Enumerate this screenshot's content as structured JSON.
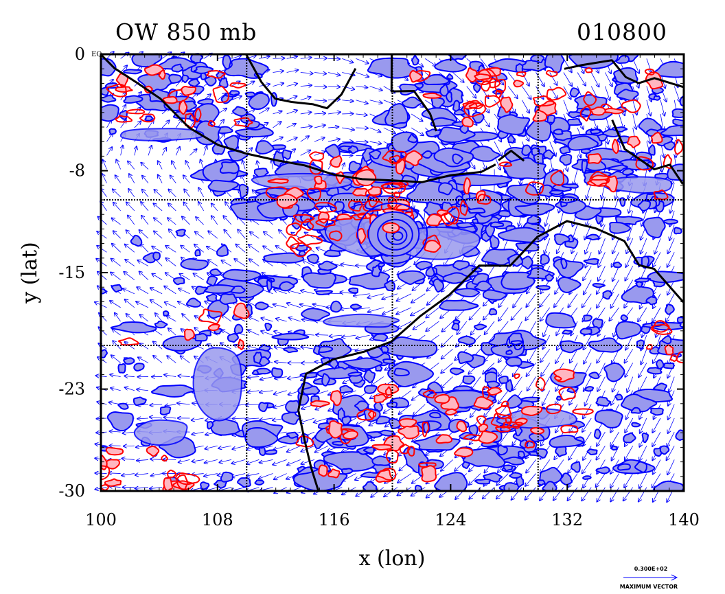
{
  "chart_data": {
    "type": "contour",
    "title_left": "OW 850 mb",
    "title_right": "010800",
    "xlabel": "x (lon)",
    "ylabel": "y (lat)",
    "xlim": [
      100,
      140
    ],
    "ylim": [
      -30,
      0
    ],
    "x_ticks": [
      {
        "value": 100,
        "label": "100"
      },
      {
        "value": 108,
        "label": "108"
      },
      {
        "value": 116,
        "label": "116"
      },
      {
        "value": 124,
        "label": "124"
      },
      {
        "value": 132,
        "label": "132"
      },
      {
        "value": 140,
        "label": "140"
      }
    ],
    "y_ticks": [
      {
        "value": 0,
        "label": "0"
      },
      {
        "value": -8,
        "label": "-8"
      },
      {
        "value": -15,
        "label": "-15"
      },
      {
        "value": -23,
        "label": "-23"
      },
      {
        "value": -30,
        "label": "-30"
      }
    ],
    "equator_label": "EQ",
    "gridlines": {
      "lon": [
        110,
        120,
        130
      ],
      "lat": [
        -10,
        -20
      ]
    },
    "vector_key": {
      "value": "0.300E+02",
      "label": "MAXIMUM VECTOR"
    },
    "colors": {
      "positive_contour": "#ff0000",
      "positive_fill": "#ffb6c1",
      "negative_contour": "#0000ff",
      "negative_fill": "#9999ee",
      "coastline": "#000000",
      "wind_vectors": "#0000ff"
    },
    "features": {
      "cyclonic_center": {
        "lon": 120,
        "lat": -12.3
      },
      "coastline_segments": [
        {
          "name": "northern-borneo",
          "points": [
            [
              100,
              0
            ],
            [
              101,
              -1
            ],
            [
              102.5,
              -2
            ],
            [
              104,
              -3
            ],
            [
              106,
              -5
            ],
            [
              108,
              -6.3
            ],
            [
              110,
              -6.8
            ],
            [
              112,
              -7.2
            ],
            [
              114,
              -7.7
            ],
            [
              116,
              -8.2
            ],
            [
              118,
              -8.5
            ],
            [
              120,
              -8.7
            ],
            [
              122,
              -8.7
            ],
            [
              124,
              -8.3
            ],
            [
              126,
              -8.0
            ],
            [
              127,
              -7.6
            ]
          ]
        },
        {
          "name": "australia-nw",
          "points": [
            [
              140,
              -17
            ],
            [
              138,
              -14.8
            ],
            [
              137,
              -14.4
            ],
            [
              136,
              -12.8
            ],
            [
              134,
              -12
            ],
            [
              132,
              -11.5
            ],
            [
              130,
              -12.5
            ],
            [
              128,
              -14.5
            ],
            [
              126,
              -14.5
            ],
            [
              124,
              -16.5
            ],
            [
              122,
              -18
            ],
            [
              120,
              -19.8
            ],
            [
              118,
              -20.5
            ],
            [
              116,
              -21
            ],
            [
              114,
              -22
            ],
            [
              113.5,
              -24.5
            ],
            [
              114,
              -26.5
            ],
            [
              114.5,
              -28.5
            ],
            [
              115,
              -30
            ]
          ]
        },
        {
          "name": "north-islands",
          "points": [
            [
              110,
              0
            ],
            [
              111,
              -2
            ],
            [
              112,
              -3
            ],
            [
              113,
              -3.3
            ],
            [
              114.5,
              -3.5
            ],
            [
              115.5,
              -3.7
            ],
            [
              116.5,
              -2.7
            ],
            [
              117.5,
              -1
            ]
          ]
        },
        {
          "name": "sulawesi",
          "points": [
            [
              120,
              0
            ],
            [
              120,
              -2.5
            ],
            [
              121.5,
              -2.5
            ],
            [
              122.5,
              -4
            ],
            [
              123,
              -5.3
            ]
          ]
        },
        {
          "name": "new-guinea",
          "points": [
            [
              131.8,
              -1
            ],
            [
              133,
              -0.8
            ],
            [
              135,
              -0.5
            ],
            [
              136,
              -1.5
            ],
            [
              137,
              -2
            ],
            [
              138,
              -1.7
            ],
            [
              140,
              -2.2
            ]
          ]
        },
        {
          "name": "new-guinea-south",
          "points": [
            [
              135,
              -4.5
            ],
            [
              136,
              -6.5
            ],
            [
              138,
              -8
            ],
            [
              139,
              -7.5
            ],
            [
              140,
              -9
            ]
          ]
        },
        {
          "name": "aru-timor",
          "points": [
            [
              127.3,
              -7.3
            ],
            [
              128.2,
              -6.6
            ],
            [
              129,
              -7.3
            ]
          ]
        }
      ]
    }
  }
}
